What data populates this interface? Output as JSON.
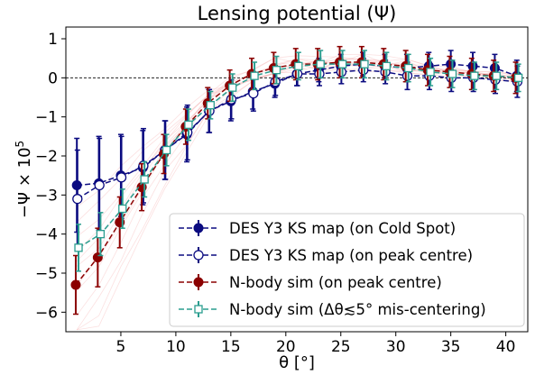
{
  "chart_data": {
    "type": "line",
    "title": "Lensing potential (Ψ)",
    "xlabel": "θ [°]",
    "ylabel_main": "−Ψ × 10",
    "ylabel_exp": "5",
    "xlim": [
      0,
      42
    ],
    "ylim": [
      -6.5,
      1.3
    ],
    "xticks": [
      5,
      10,
      15,
      20,
      25,
      30,
      35,
      40
    ],
    "yticks": [
      -6,
      -5,
      -4,
      -3,
      -2,
      -1,
      0,
      1
    ],
    "reference_line": {
      "y": 0,
      "style": "dashed",
      "color": "#000000"
    },
    "legend_position": "lower-right",
    "series": [
      {
        "name": "DES Y3 KS map (on Cold Spot)",
        "color": "#0b0b80",
        "marker": "filled-circle",
        "x_offset": 0,
        "x": [
          1,
          3,
          5,
          7,
          9,
          11,
          13,
          15,
          17,
          19,
          21,
          23,
          25,
          27,
          29,
          31,
          33,
          35,
          37,
          39,
          41
        ],
        "y": [
          -2.75,
          -2.7,
          -2.5,
          -2.3,
          -1.85,
          -1.45,
          -0.85,
          -0.6,
          -0.35,
          -0.15,
          0.1,
          0.2,
          0.3,
          0.35,
          0.3,
          0.25,
          0.3,
          0.35,
          0.3,
          0.25,
          0.05
        ],
        "err": [
          1.2,
          1.2,
          1.05,
          0.95,
          0.75,
          0.7,
          0.55,
          0.5,
          0.45,
          0.35,
          0.3,
          0.3,
          0.3,
          0.3,
          0.3,
          0.35,
          0.35,
          0.35,
          0.35,
          0.35,
          0.4
        ]
      },
      {
        "name": "DES Y3 KS map (on peak centre)",
        "color": "#0b0b80",
        "marker": "open-circle",
        "x_offset": 0.05,
        "x": [
          1,
          3,
          5,
          7,
          9,
          11,
          13,
          15,
          17,
          19,
          21,
          23,
          25,
          27,
          29,
          31,
          33,
          35,
          37,
          39,
          41
        ],
        "y": [
          -3.1,
          -2.75,
          -2.55,
          -2.25,
          -1.85,
          -1.4,
          -0.85,
          -0.55,
          -0.4,
          -0.1,
          0.1,
          0.1,
          0.15,
          0.2,
          0.15,
          0.05,
          0.05,
          0.0,
          0.0,
          -0.05,
          -0.1
        ],
        "err": [
          1.25,
          1.2,
          1.05,
          0.95,
          0.75,
          0.7,
          0.55,
          0.5,
          0.45,
          0.35,
          0.3,
          0.3,
          0.3,
          0.3,
          0.3,
          0.35,
          0.35,
          0.35,
          0.35,
          0.35,
          0.4
        ]
      },
      {
        "name": "N-body sim (on peak centre)",
        "color": "#8b0000",
        "marker": "filled-circle",
        "x_offset": -0.1,
        "x": [
          1,
          3,
          5,
          7,
          9,
          11,
          13,
          15,
          17,
          19,
          21,
          23,
          25,
          27,
          29,
          31,
          33,
          35,
          37,
          39,
          41
        ],
        "y": [
          -5.3,
          -4.6,
          -3.7,
          -2.8,
          -1.95,
          -1.25,
          -0.65,
          -0.2,
          0.1,
          0.25,
          0.35,
          0.35,
          0.4,
          0.4,
          0.35,
          0.3,
          0.2,
          0.15,
          0.1,
          0.05,
          0.0
        ],
        "err": [
          0.75,
          0.75,
          0.65,
          0.6,
          0.5,
          0.45,
          0.4,
          0.4,
          0.4,
          0.4,
          0.4,
          0.4,
          0.4,
          0.4,
          0.4,
          0.4,
          0.4,
          0.4,
          0.4,
          0.4,
          0.4
        ]
      },
      {
        "name": "N-body sim (Δθ≲5° mis-centering)",
        "color": "#2a9d8f",
        "marker": "open-square",
        "x_offset": 0.15,
        "x": [
          1,
          3,
          5,
          7,
          9,
          11,
          13,
          15,
          17,
          19,
          21,
          23,
          25,
          27,
          29,
          31,
          33,
          35,
          37,
          39,
          41
        ],
        "y": [
          -4.35,
          -4.0,
          -3.35,
          -2.6,
          -1.85,
          -1.2,
          -0.7,
          -0.25,
          0.05,
          0.2,
          0.3,
          0.35,
          0.35,
          0.35,
          0.3,
          0.25,
          0.15,
          0.1,
          0.05,
          0.05,
          0.0
        ],
        "err": [
          0.6,
          0.55,
          0.5,
          0.45,
          0.4,
          0.4,
          0.35,
          0.35,
          0.35,
          0.35,
          0.35,
          0.35,
          0.35,
          0.35,
          0.35,
          0.35,
          0.35,
          0.35,
          0.35,
          0.35,
          0.35
        ]
      }
    ],
    "background_realizations": {
      "color": "#f4a6a6",
      "count": 12,
      "description_hidden": true
    }
  }
}
